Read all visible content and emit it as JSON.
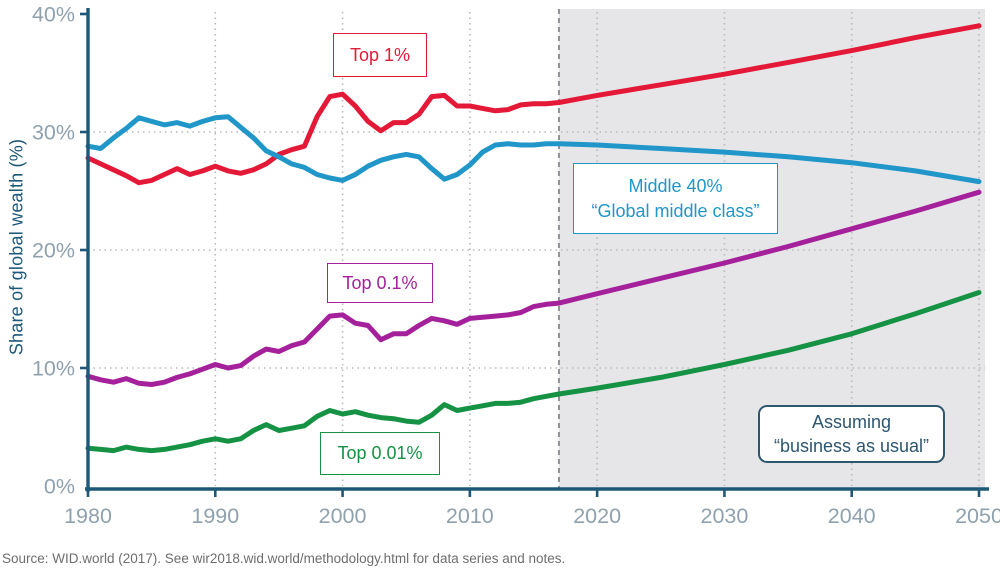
{
  "figure": {
    "y_axis_title": "Share of global wealth (%)",
    "source": "Source: WID.world (2017). See wir2018.wid.world/methodology.html for data series and notes."
  },
  "annotations": {
    "top1_label": "Top 1%",
    "middle40_line1": "Middle 40%",
    "middle40_line2": "“Global middle class”",
    "top01_label": "Top 0.1%",
    "top001_label": "Top 0.01%",
    "assume_line1": "Assuming",
    "assume_line2": "“business as usual”"
  },
  "colors": {
    "projection_bg": "#e6e6e8",
    "axis": "#1e5878",
    "grid": "#b6babd",
    "dashed_boundary": "#8e9296",
    "tick_label": "#90a1ae",
    "annotation": "#2d566f",
    "source_text": "#6e6e6e",
    "top1": "#e41937",
    "middle40": "#2196c9",
    "top01": "#a5219c",
    "top001": "#169245"
  },
  "chart_data": {
    "type": "line",
    "title": "",
    "xlabel": "",
    "ylabel": "Share of global wealth (%)",
    "xlim": [
      1980,
      2050
    ],
    "ylim": [
      0,
      40
    ],
    "x_ticks": [
      1980,
      1990,
      2000,
      2010,
      2020,
      2030,
      2040,
      2050
    ],
    "x_tick_labels": [
      "1980",
      "1990",
      "2000",
      "2010",
      "2020",
      "2030",
      "2040",
      "2050"
    ],
    "y_ticks": [
      0,
      10,
      20,
      30,
      40
    ],
    "y_tick_labels": [
      "0%",
      "10%",
      "20%",
      "30%",
      "40%"
    ],
    "x_grid": [
      1990,
      2000,
      2010,
      2020,
      2030,
      2040,
      2050
    ],
    "y_grid": [
      10,
      20,
      30
    ],
    "grid_style": "dotted",
    "legend_position": "inline-boxed-labels",
    "projection_start": 2017,
    "series": [
      {
        "id": "top-1",
        "name": "Top 1%",
        "color": "#e41937",
        "points": [
          [
            1980,
            27.8
          ],
          [
            1981,
            27.3
          ],
          [
            1982,
            26.8
          ],
          [
            1983,
            26.3
          ],
          [
            1984,
            25.7
          ],
          [
            1985,
            25.9
          ],
          [
            1986,
            26.4
          ],
          [
            1987,
            26.9
          ],
          [
            1988,
            26.4
          ],
          [
            1989,
            26.7
          ],
          [
            1990,
            27.1
          ],
          [
            1991,
            26.7
          ],
          [
            1992,
            26.5
          ],
          [
            1993,
            26.8
          ],
          [
            1994,
            27.3
          ],
          [
            1995,
            28.1
          ],
          [
            1996,
            28.5
          ],
          [
            1997,
            28.8
          ],
          [
            1998,
            31.3
          ],
          [
            1999,
            33.0
          ],
          [
            2000,
            33.2
          ],
          [
            2001,
            32.2
          ],
          [
            2002,
            30.9
          ],
          [
            2003,
            30.1
          ],
          [
            2004,
            30.8
          ],
          [
            2005,
            30.8
          ],
          [
            2006,
            31.5
          ],
          [
            2007,
            33.0
          ],
          [
            2008,
            33.1
          ],
          [
            2009,
            32.2
          ],
          [
            2010,
            32.2
          ],
          [
            2011,
            32.0
          ],
          [
            2012,
            31.8
          ],
          [
            2013,
            31.9
          ],
          [
            2014,
            32.3
          ],
          [
            2015,
            32.4
          ],
          [
            2016,
            32.4
          ],
          [
            2017,
            32.5
          ],
          [
            2020,
            33.1
          ],
          [
            2025,
            34.0
          ],
          [
            2030,
            34.9
          ],
          [
            2035,
            35.9
          ],
          [
            2040,
            36.9
          ],
          [
            2045,
            38.0
          ],
          [
            2050,
            39.0
          ]
        ]
      },
      {
        "id": "middle-40",
        "name": "Middle 40% “Global middle class”",
        "color": "#2196c9",
        "points": [
          [
            1980,
            28.8
          ],
          [
            1981,
            28.6
          ],
          [
            1982,
            29.5
          ],
          [
            1983,
            30.3
          ],
          [
            1984,
            31.2
          ],
          [
            1985,
            30.9
          ],
          [
            1986,
            30.6
          ],
          [
            1987,
            30.8
          ],
          [
            1988,
            30.5
          ],
          [
            1989,
            30.9
          ],
          [
            1990,
            31.2
          ],
          [
            1991,
            31.3
          ],
          [
            1992,
            30.4
          ],
          [
            1993,
            29.5
          ],
          [
            1994,
            28.4
          ],
          [
            1995,
            27.9
          ],
          [
            1996,
            27.3
          ],
          [
            1997,
            27.0
          ],
          [
            1998,
            26.4
          ],
          [
            1999,
            26.1
          ],
          [
            2000,
            25.9
          ],
          [
            2001,
            26.4
          ],
          [
            2002,
            27.1
          ],
          [
            2003,
            27.6
          ],
          [
            2004,
            27.9
          ],
          [
            2005,
            28.1
          ],
          [
            2006,
            27.9
          ],
          [
            2007,
            26.9
          ],
          [
            2008,
            26.0
          ],
          [
            2009,
            26.4
          ],
          [
            2010,
            27.2
          ],
          [
            2011,
            28.3
          ],
          [
            2012,
            28.9
          ],
          [
            2013,
            29.0
          ],
          [
            2014,
            28.9
          ],
          [
            2015,
            28.9
          ],
          [
            2016,
            29.0
          ],
          [
            2017,
            29.0
          ],
          [
            2020,
            28.9
          ],
          [
            2025,
            28.6
          ],
          [
            2030,
            28.3
          ],
          [
            2035,
            27.9
          ],
          [
            2040,
            27.4
          ],
          [
            2045,
            26.7
          ],
          [
            2050,
            25.8
          ]
        ]
      },
      {
        "id": "top-0-1",
        "name": "Top 0.1%",
        "color": "#a5219c",
        "points": [
          [
            1980,
            9.3
          ],
          [
            1981,
            9.0
          ],
          [
            1982,
            8.8
          ],
          [
            1983,
            9.1
          ],
          [
            1984,
            8.7
          ],
          [
            1985,
            8.6
          ],
          [
            1986,
            8.8
          ],
          [
            1987,
            9.2
          ],
          [
            1988,
            9.5
          ],
          [
            1989,
            9.9
          ],
          [
            1990,
            10.3
          ],
          [
            1991,
            10.0
          ],
          [
            1992,
            10.2
          ],
          [
            1993,
            11.0
          ],
          [
            1994,
            11.6
          ],
          [
            1995,
            11.4
          ],
          [
            1996,
            11.9
          ],
          [
            1997,
            12.2
          ],
          [
            1998,
            13.3
          ],
          [
            1999,
            14.4
          ],
          [
            2000,
            14.5
          ],
          [
            2001,
            13.8
          ],
          [
            2002,
            13.6
          ],
          [
            2003,
            12.4
          ],
          [
            2004,
            12.9
          ],
          [
            2005,
            12.9
          ],
          [
            2006,
            13.6
          ],
          [
            2007,
            14.2
          ],
          [
            2008,
            14.0
          ],
          [
            2009,
            13.7
          ],
          [
            2010,
            14.2
          ],
          [
            2011,
            14.3
          ],
          [
            2012,
            14.4
          ],
          [
            2013,
            14.5
          ],
          [
            2014,
            14.7
          ],
          [
            2015,
            15.2
          ],
          [
            2016,
            15.4
          ],
          [
            2017,
            15.5
          ],
          [
            2020,
            16.3
          ],
          [
            2025,
            17.6
          ],
          [
            2030,
            18.9
          ],
          [
            2035,
            20.3
          ],
          [
            2040,
            21.8
          ],
          [
            2045,
            23.3
          ],
          [
            2050,
            24.9
          ]
        ]
      },
      {
        "id": "top-0-01",
        "name": "Top 0.01%",
        "color": "#169245",
        "points": [
          [
            1980,
            3.2
          ],
          [
            1981,
            3.1
          ],
          [
            1982,
            3.0
          ],
          [
            1983,
            3.3
          ],
          [
            1984,
            3.1
          ],
          [
            1985,
            3.0
          ],
          [
            1986,
            3.1
          ],
          [
            1987,
            3.3
          ],
          [
            1988,
            3.5
          ],
          [
            1989,
            3.8
          ],
          [
            1990,
            4.0
          ],
          [
            1991,
            3.8
          ],
          [
            1992,
            4.0
          ],
          [
            1993,
            4.7
          ],
          [
            1994,
            5.2
          ],
          [
            1995,
            4.7
          ],
          [
            1996,
            4.9
          ],
          [
            1997,
            5.1
          ],
          [
            1998,
            5.9
          ],
          [
            1999,
            6.4
          ],
          [
            2000,
            6.1
          ],
          [
            2001,
            6.3
          ],
          [
            2002,
            6.0
          ],
          [
            2003,
            5.8
          ],
          [
            2004,
            5.7
          ],
          [
            2005,
            5.5
          ],
          [
            2006,
            5.4
          ],
          [
            2007,
            6.0
          ],
          [
            2008,
            6.9
          ],
          [
            2009,
            6.4
          ],
          [
            2010,
            6.6
          ],
          [
            2011,
            6.8
          ],
          [
            2012,
            7.0
          ],
          [
            2013,
            7.0
          ],
          [
            2014,
            7.1
          ],
          [
            2015,
            7.4
          ],
          [
            2016,
            7.6
          ],
          [
            2017,
            7.8
          ],
          [
            2020,
            8.3
          ],
          [
            2025,
            9.2
          ],
          [
            2030,
            10.3
          ],
          [
            2035,
            11.5
          ],
          [
            2040,
            12.9
          ],
          [
            2045,
            14.6
          ],
          [
            2050,
            16.4
          ]
        ]
      }
    ]
  }
}
